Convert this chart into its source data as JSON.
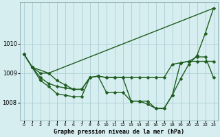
{
  "background_color": "#d6eef0",
  "grid_color": "#aacdd4",
  "line_color": "#1e5c1e",
  "title": "Graphe pression niveau de la mer (hPa)",
  "xlim": [
    -0.5,
    23.5
  ],
  "ylim": [
    1007.4,
    1011.4
  ],
  "yticks": [
    1008,
    1009,
    1010
  ],
  "xticks": [
    0,
    1,
    2,
    3,
    4,
    5,
    6,
    7,
    8,
    9,
    10,
    11,
    12,
    13,
    14,
    15,
    16,
    17,
    18,
    19,
    20,
    21,
    22,
    23
  ],
  "series": [
    {
      "x": [
        0,
        1,
        2,
        3,
        4,
        5,
        6,
        7,
        8,
        9,
        10,
        11,
        12,
        13,
        14,
        15,
        16,
        17,
        18,
        19,
        20,
        21,
        22,
        23
      ],
      "y": [
        1009.65,
        1009.2,
        1009.0,
        1009.0,
        1008.75,
        1008.6,
        1008.45,
        1008.45,
        1008.85,
        1008.9,
        1008.85,
        1008.85,
        1008.85,
        1008.85,
        1008.85,
        1008.85,
        1008.85,
        1008.85,
        1009.3,
        1009.35,
        1009.4,
        1009.4,
        1009.4,
        1009.4
      ]
    },
    {
      "x": [
        0,
        1,
        2,
        3,
        4,
        5,
        6,
        7,
        8,
        9,
        10,
        11,
        12,
        13,
        14,
        15,
        16,
        17,
        18,
        19,
        20,
        21,
        22,
        23
      ],
      "y": [
        1009.65,
        1009.2,
        1008.75,
        1008.55,
        1008.3,
        1008.25,
        1008.2,
        1008.2,
        1008.85,
        1008.9,
        1008.35,
        1008.35,
        1008.35,
        1008.05,
        1008.05,
        1007.95,
        1007.8,
        1007.8,
        1008.25,
        1008.8,
        1009.3,
        1009.6,
        1010.35,
        1011.2
      ]
    },
    {
      "x": [
        0,
        1,
        3,
        23
      ],
      "y": [
        1009.65,
        1009.2,
        1009.0,
        1011.2
      ]
    },
    {
      "x": [
        0,
        1,
        2,
        3,
        4,
        5,
        6,
        7,
        8,
        9,
        10,
        11,
        12,
        13,
        14,
        15,
        16,
        17,
        18,
        19,
        20,
        21,
        22,
        23
      ],
      "y": [
        1009.65,
        1009.2,
        1008.85,
        1008.65,
        1008.55,
        1008.5,
        1008.45,
        1008.45,
        1008.85,
        1008.9,
        1008.85,
        1008.85,
        1008.85,
        1008.05,
        1008.05,
        1008.05,
        1007.8,
        1007.8,
        1008.25,
        1009.35,
        1009.4,
        1009.55,
        1009.55,
        1008.85
      ]
    }
  ],
  "marker_series": [
    0,
    1,
    3
  ],
  "straight_series": [
    2
  ]
}
